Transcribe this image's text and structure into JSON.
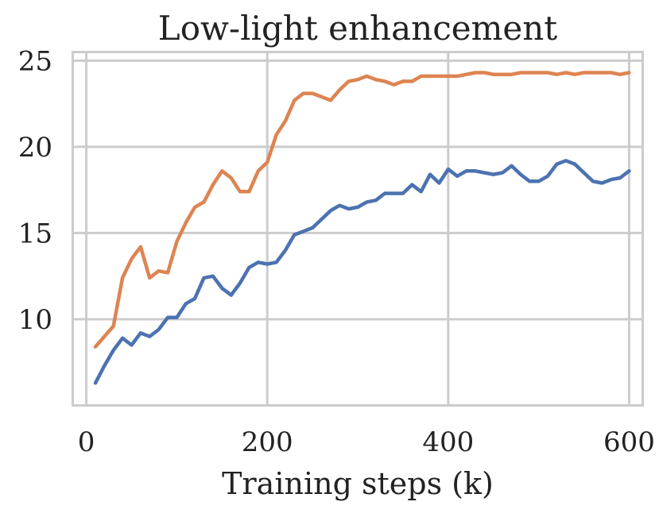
{
  "chart_data": {
    "type": "line",
    "title": "Low-light enhancement",
    "xlabel": "Training steps (k)",
    "ylabel": "",
    "xlim": [
      -15,
      615
    ],
    "ylim": [
      5,
      25.5
    ],
    "xticks": [
      0,
      200,
      400,
      600
    ],
    "yticks": [
      10,
      15,
      20,
      25
    ],
    "grid": true,
    "legend": "none",
    "x": [
      10,
      20,
      30,
      40,
      50,
      60,
      70,
      80,
      90,
      100,
      110,
      120,
      130,
      140,
      150,
      160,
      170,
      180,
      190,
      200,
      210,
      220,
      230,
      240,
      250,
      260,
      270,
      280,
      290,
      300,
      310,
      320,
      330,
      340,
      350,
      360,
      370,
      380,
      390,
      400,
      410,
      420,
      430,
      440,
      450,
      460,
      470,
      480,
      490,
      500,
      510,
      520,
      530,
      540,
      550,
      560,
      570,
      580,
      590,
      600
    ],
    "series": [
      {
        "color": "#4C72B0",
        "values": [
          6.3,
          7.3,
          8.2,
          8.9,
          8.5,
          9.2,
          9.0,
          9.4,
          10.1,
          10.1,
          10.9,
          11.2,
          12.4,
          12.5,
          11.8,
          11.4,
          12.1,
          13.0,
          13.3,
          13.2,
          13.3,
          14.0,
          14.9,
          15.1,
          15.3,
          15.8,
          16.3,
          16.6,
          16.4,
          16.5,
          16.8,
          16.9,
          17.3,
          17.3,
          17.3,
          17.8,
          17.4,
          18.4,
          17.9,
          18.7,
          18.3,
          18.6,
          18.6,
          18.5,
          18.4,
          18.5,
          18.9,
          18.4,
          18.0,
          18.0,
          18.3,
          19.0,
          19.2,
          19.0,
          18.5,
          18.0,
          17.9,
          18.1,
          18.2,
          18.6
        ]
      },
      {
        "color": "#DD8452",
        "values": [
          8.4,
          9.0,
          9.6,
          12.4,
          13.5,
          14.2,
          12.4,
          12.8,
          12.7,
          14.5,
          15.6,
          16.5,
          16.8,
          17.8,
          18.6,
          18.2,
          17.4,
          17.4,
          18.6,
          19.1,
          20.7,
          21.5,
          22.7,
          23.1,
          23.1,
          22.9,
          22.7,
          23.3,
          23.8,
          23.9,
          24.1,
          23.9,
          23.8,
          23.6,
          23.8,
          23.8,
          24.1,
          24.1,
          24.1,
          24.1,
          24.1,
          24.2,
          24.3,
          24.3,
          24.2,
          24.2,
          24.2,
          24.3,
          24.3,
          24.3,
          24.3,
          24.2,
          24.3,
          24.2,
          24.3,
          24.3,
          24.3,
          24.3,
          24.2,
          24.3
        ]
      }
    ]
  }
}
